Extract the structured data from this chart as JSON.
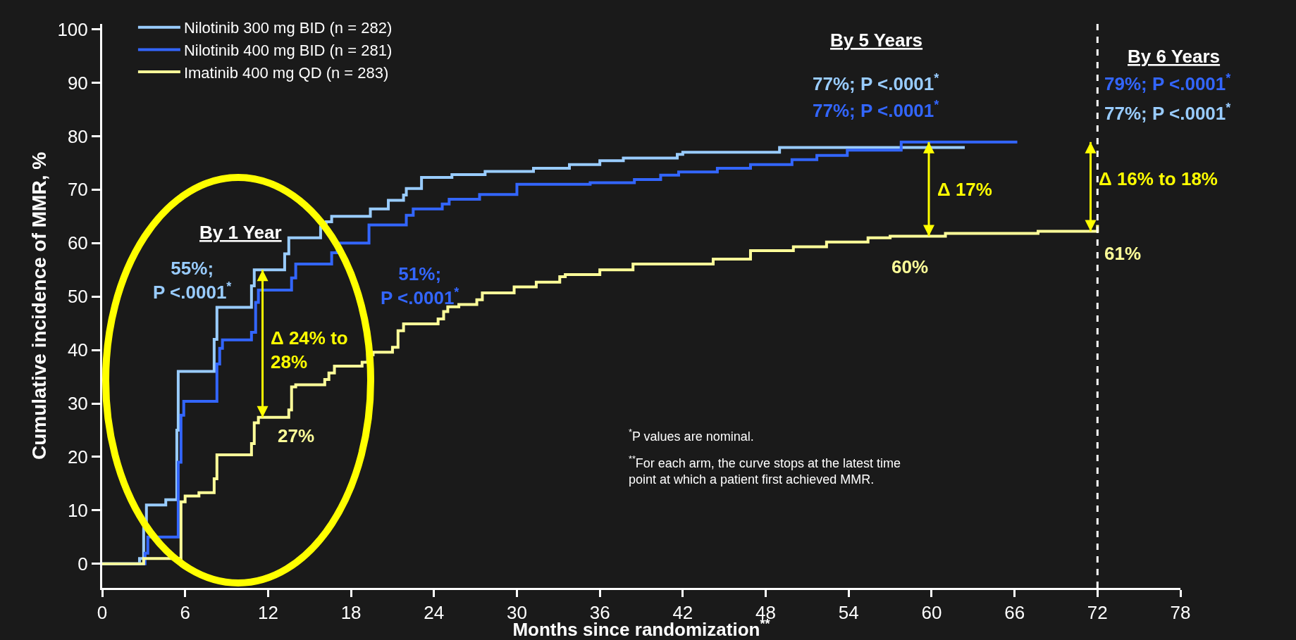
{
  "chart_data": {
    "type": "step",
    "xlabel": "Months since randomization$^{**}$",
    "ylabel": "Cumulative incidence of MMR, %",
    "xlim": [
      0,
      78
    ],
    "xticks": [
      0,
      6,
      12,
      18,
      24,
      30,
      36,
      42,
      48,
      54,
      60,
      66,
      72,
      78
    ],
    "ylim": [
      -4.5,
      101
    ],
    "yticks": [
      0,
      10,
      20,
      30,
      40,
      50,
      60,
      70,
      80,
      90,
      100
    ],
    "grid": false,
    "legend": "top left",
    "marker": "none",
    "line_style": "solid",
    "series": [
      {
        "name": "Nilotinib 300 mg BID (n = 282)",
        "color": "#99ccff",
        "x": [
          0,
          2.7,
          3,
          3.2,
          4.6,
          5.4,
          5.5,
          8.1,
          8.3,
          10.8,
          11,
          13.2,
          13.5,
          15.8,
          16.2,
          16.6,
          19.4,
          20.7,
          21.8,
          22,
          23.1,
          25.3,
          27.7,
          31.2,
          33.8,
          36,
          37.7,
          41.6,
          42,
          49,
          62.4
        ],
        "values": [
          0,
          1,
          8,
          11,
          12,
          25,
          36,
          42,
          48,
          52,
          55,
          58,
          61,
          63,
          64,
          65,
          66.4,
          68,
          69,
          70.2,
          72.3,
          72.8,
          73.4,
          74,
          74.7,
          75.4,
          75.9,
          76.6,
          77,
          77.9,
          77.9
        ]
      },
      {
        "name": "Nilotinib 400 mg BID (n = 281)",
        "color": "#3366ff",
        "x": [
          0,
          3.1,
          3.3,
          5.5,
          5.7,
          5.9,
          8.3,
          8.5,
          8.7,
          10.8,
          11.1,
          11.3,
          13.7,
          14,
          16.6,
          17,
          19.3,
          22,
          22.5,
          24.6,
          25.1,
          27.3,
          30,
          35.3,
          38.5,
          40.4,
          41.7,
          44.5,
          46.9,
          49.9,
          51.7,
          53.9,
          57.8,
          66.2
        ],
        "values": [
          0,
          2,
          5,
          19,
          27.8,
          30.4,
          37.4,
          40.3,
          41.9,
          43.3,
          48.9,
          51.2,
          53.5,
          56.1,
          58.2,
          60,
          63.4,
          65.2,
          66.4,
          67.3,
          68.2,
          69.1,
          71,
          71.3,
          71.9,
          72.7,
          73.3,
          74,
          74.7,
          75.6,
          76.4,
          77.4,
          78.9,
          78.9
        ]
      },
      {
        "name": "Imatinib 400 mg QD (n = 283)",
        "color": "#ffff99",
        "x": [
          0,
          3,
          5.7,
          6,
          7,
          8.1,
          8.3,
          10.8,
          11,
          11.3,
          13.5,
          13.7,
          14,
          16.1,
          16.4,
          16.8,
          18.8,
          19.2,
          19.6,
          21,
          21.4,
          21.8,
          24.3,
          24.7,
          25,
          25.8,
          27.1,
          27.5,
          29.8,
          31.4,
          33.1,
          33.5,
          36,
          38.4,
          44.2,
          46.9,
          50,
          52.4,
          55.4,
          57,
          61,
          67.7,
          72
        ],
        "values": [
          0,
          1,
          11.6,
          12.7,
          13.3,
          15.9,
          20.4,
          22.5,
          26.4,
          27.4,
          28.8,
          33.1,
          33.5,
          34.5,
          35.7,
          37,
          37.7,
          39.1,
          39.6,
          40.5,
          43.6,
          44.9,
          45.8,
          47.2,
          48.1,
          48.5,
          49.4,
          50.7,
          51.8,
          52.7,
          53.7,
          54.1,
          55,
          56.1,
          57,
          58.6,
          59.3,
          60.2,
          61,
          61.3,
          61.8,
          62.2,
          63.4
        ]
      }
    ],
    "ref_lines": [
      {
        "axis": "x",
        "value": 72,
        "color": "#ffffff",
        "line_style": "dashed"
      }
    ],
    "annotations": [
      "By 1 Year",
      "By 5 Years",
      "By 6 Years",
      "$^{*}$P values are nominal.",
      "$^{**}$For each arm, the curve stops at the latest time\npoint at which a patient first achieved MMR.",
      "55%;\nP <.0001$^{*}$",
      "51%;\nP <.0001$^{*}$",
      "Δ 24% to\n28%",
      {
        "text": "27%",
        "x": 11.6,
        "y": 27.4
      },
      "77%; P <.0001$^{*}$",
      "77%; P <.0001$^{*}$",
      "Δ 17%",
      {
        "text": "60%",
        "x": 60,
        "y": 61.3
      },
      "79%; P <.0001$^{*}$",
      "77%; P <.0001$^{*}$",
      "Δ 16% to 18%",
      "61%"
    ]
  }
}
